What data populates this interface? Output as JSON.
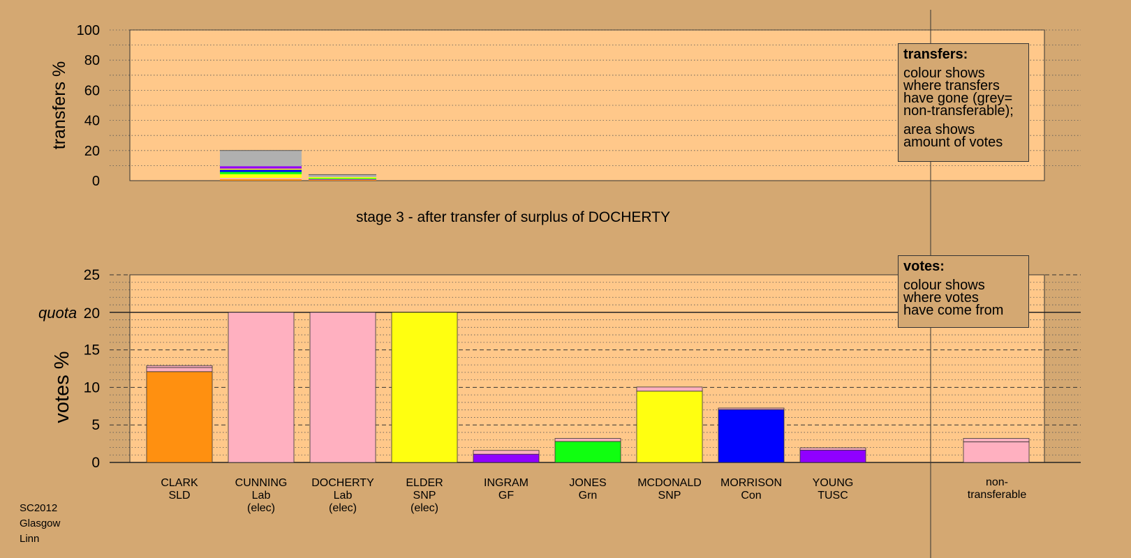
{
  "chart_data": [
    {
      "type": "bar",
      "stacked": true,
      "ylabel": "transfers %",
      "ylim": [
        0,
        100
      ],
      "yticks": [
        0,
        20,
        40,
        60,
        80,
        100
      ],
      "grid": "dotted every 10",
      "caption": "stage 3 - after transfer of surplus of DOCHERTY",
      "bars": [
        {
          "position": "CUNNING",
          "segments": [
            {
              "color": "#ff9010",
              "value": 1.0
            },
            {
              "color": "#ffb0c0",
              "value": 0.8
            },
            {
              "color": "#ffff10",
              "value": 2.5
            },
            {
              "color": "#10ff10",
              "value": 1.5
            },
            {
              "color": "#0000ff",
              "value": 1.4
            },
            {
              "color": "#ffff10",
              "value": 0.8
            },
            {
              "color": "#9000ff",
              "value": 1.6
            },
            {
              "color": "#b0b0b0",
              "value": 10.4
            }
          ]
        },
        {
          "position": "DOCHERTY",
          "segments": [
            {
              "color": "#ff9010",
              "value": 0.6
            },
            {
              "color": "#9000ff",
              "value": 0.4
            },
            {
              "color": "#10ff10",
              "value": 0.6
            },
            {
              "color": "#ffff10",
              "value": 0.8
            },
            {
              "color": "#b0b0b0",
              "value": 1.6
            }
          ]
        }
      ]
    },
    {
      "type": "bar",
      "stacked": true,
      "ylabel": "votes %",
      "ylim": [
        0,
        25
      ],
      "yticks": [
        0,
        5,
        10,
        15,
        20,
        25
      ],
      "quota": 20,
      "quota_label": "quota",
      "grid": "dotted every 1, dashed every 5",
      "categories": [
        {
          "name": "CLARK",
          "party": "SLD",
          "note": ""
        },
        {
          "name": "CUNNING",
          "party": "Lab",
          "note": "(elec)"
        },
        {
          "name": "DOCHERTY",
          "party": "Lab",
          "note": "(elec)"
        },
        {
          "name": "ELDER",
          "party": "SNP",
          "note": "(elec)"
        },
        {
          "name": "INGRAM",
          "party": "GF",
          "note": ""
        },
        {
          "name": "JONES",
          "party": "Grn",
          "note": ""
        },
        {
          "name": "MCDONALD",
          "party": "SNP",
          "note": ""
        },
        {
          "name": "MORRISON",
          "party": "Con",
          "note": ""
        },
        {
          "name": "YOUNG",
          "party": "TUSC",
          "note": ""
        }
      ],
      "nontransferable_label": [
        "non-",
        "transferable"
      ],
      "bars": [
        {
          "segments": [
            {
              "color": "#ff9010",
              "value": 12.1
            },
            {
              "color": "#ffb0c0",
              "value": 0.55
            },
            {
              "color": "#ffb0c0",
              "value": 0.25
            }
          ]
        },
        {
          "segments": [
            {
              "color": "#ffb0c0",
              "value": 20.0
            }
          ]
        },
        {
          "segments": [
            {
              "color": "#ffb0c0",
              "value": 20.0
            }
          ]
        },
        {
          "segments": [
            {
              "color": "#ffff10",
              "value": 20.0
            }
          ]
        },
        {
          "segments": [
            {
              "color": "#9000ff",
              "value": 1.1
            },
            {
              "color": "#ffb0c0",
              "value": 0.5
            }
          ]
        },
        {
          "segments": [
            {
              "color": "#10ff10",
              "value": 2.8
            },
            {
              "color": "#ffb0c0",
              "value": 0.4
            }
          ]
        },
        {
          "segments": [
            {
              "color": "#ffff10",
              "value": 9.5
            },
            {
              "color": "#ffb0c0",
              "value": 0.55
            }
          ]
        },
        {
          "segments": [
            {
              "color": "#0000ff",
              "value": 7.05
            },
            {
              "color": "#ffb0c0",
              "value": 0.2
            }
          ]
        },
        {
          "segments": [
            {
              "color": "#9000ff",
              "value": 1.65
            },
            {
              "color": "#ffb0c0",
              "value": 0.3
            }
          ]
        },
        {
          "segments": [
            {
              "color": "#ffb0c0",
              "value": 2.75
            },
            {
              "color": "#ffb0c0",
              "value": 0.45
            }
          ]
        }
      ]
    }
  ],
  "transfers_legend": {
    "title": "transfers:",
    "lines_1": [
      "colour shows",
      "where transfers",
      "have gone (grey=",
      "non-transferable);"
    ],
    "lines_2": [
      "area shows",
      "amount of votes"
    ]
  },
  "votes_legend": {
    "title": "votes:",
    "lines": [
      "colour shows",
      "where votes",
      "have come from"
    ]
  },
  "footer": [
    "SC2012",
    "Glasgow",
    "Linn"
  ],
  "colors": {
    "background": "#d4a872",
    "plot_area": "#ffc88a",
    "SLD": "#ff9010",
    "Lab": "#ffb0c0",
    "SNP": "#ffff10",
    "GF": "#9000ff",
    "Grn": "#10ff10",
    "Con": "#0000ff",
    "TUSC": "#9000ff",
    "non-transferable": "#b0b0b0"
  }
}
